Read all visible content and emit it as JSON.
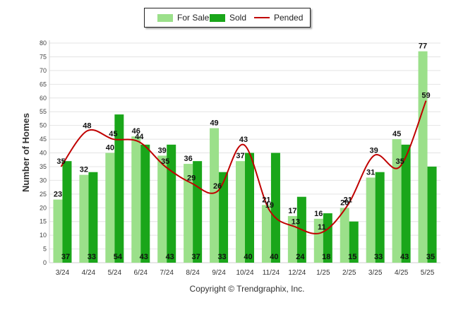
{
  "chart_data": {
    "type": "bar",
    "ylabel": "Number of Homes",
    "footer": "Copyright © Trendgraphix, Inc.",
    "ylim": [
      0,
      80
    ],
    "yticks": [
      0,
      5,
      10,
      15,
      20,
      25,
      30,
      35,
      40,
      45,
      50,
      55,
      60,
      65,
      70,
      75,
      80
    ],
    "grid": true,
    "legend_position": "top-center",
    "categories": [
      "3/24",
      "4/24",
      "5/24",
      "6/24",
      "7/24",
      "8/24",
      "9/24",
      "10/24",
      "11/24",
      "12/24",
      "1/25",
      "2/25",
      "3/25",
      "4/25",
      "5/25"
    ],
    "series": [
      {
        "name": "For Sale",
        "kind": "bar",
        "color": "#9be08a",
        "values": [
          23,
          32,
          40,
          46,
          39,
          36,
          49,
          37,
          21,
          17,
          16,
          20,
          31,
          45,
          77
        ]
      },
      {
        "name": "Sold",
        "kind": "bar",
        "color": "#1aa61a",
        "values": [
          37,
          33,
          54,
          43,
          43,
          37,
          33,
          40,
          40,
          24,
          18,
          15,
          33,
          43,
          35
        ]
      },
      {
        "name": "Pended",
        "kind": "line",
        "color": "#c00000",
        "values": [
          35,
          48,
          45,
          44,
          35,
          29,
          26,
          43,
          19,
          13,
          11,
          21,
          39,
          35,
          59
        ]
      }
    ]
  }
}
